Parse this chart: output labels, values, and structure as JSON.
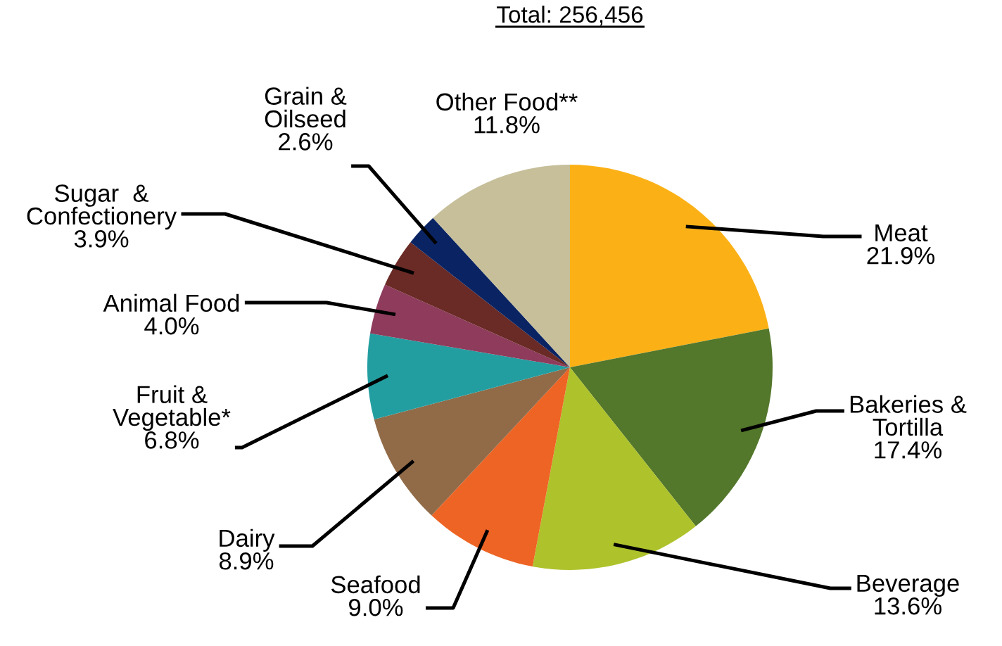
{
  "chart_data": {
    "type": "pie",
    "title": "Total: 256,456",
    "categories": [
      "Meat",
      "Bakeries &\nTortilla",
      "Beverage",
      "Seafood",
      "Dairy",
      "Fruit &\nVegetable*",
      "Animal Food",
      "Sugar  &\nConfectionery",
      "Grain &\nOilseed",
      "Other Food**"
    ],
    "values": [
      21.9,
      17.4,
      13.6,
      9.0,
      8.9,
      6.8,
      4.0,
      3.9,
      2.6,
      11.8
    ],
    "colors": [
      "#fbb116",
      "#53772b",
      "#aec22b",
      "#ee6424",
      "#916b48",
      "#239ea0",
      "#8e3b5c",
      "#6a2a25",
      "#0a2463",
      "#c6bf9a"
    ],
    "value_labels": [
      "21.9%",
      "17.4%",
      "13.6%",
      "9.0%",
      "8.9%",
      "6.8%",
      "4.0%",
      "3.9%",
      "2.6%",
      "11.8%"
    ],
    "legend": false
  }
}
